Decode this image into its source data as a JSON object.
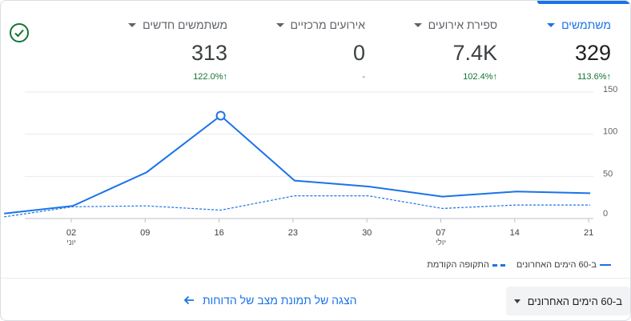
{
  "metrics": [
    {
      "label": "משתמשים",
      "value": "329",
      "change": "113.6%",
      "direction": "up",
      "active": true
    },
    {
      "label": "ספירת אירועים",
      "value": "7.4K",
      "change": "102.4%",
      "direction": "up",
      "active": false
    },
    {
      "label": "אירועים מרכזיים",
      "value": "0",
      "change": "-",
      "direction": "none",
      "active": false
    },
    {
      "label": "משתמשים חדשים",
      "value": "313",
      "change": "122.0%",
      "direction": "up",
      "active": false
    }
  ],
  "legend": {
    "current": "ב-60 הימים האחרונים",
    "previous": "התקופה הקודמת"
  },
  "footer": {
    "date_range": "ב-60 הימים האחרונים",
    "report_link": "הצגה של תמונת מצב של הדוחות"
  },
  "colors": {
    "accent": "#1a73e8",
    "positive": "#137333"
  },
  "chart_data": {
    "type": "line",
    "x": [
      "02",
      "09",
      "16",
      "23",
      "30",
      "07",
      "14",
      "21"
    ],
    "x_sublabels": [
      "יוני",
      "",
      "",
      "",
      "",
      "יולי",
      "",
      ""
    ],
    "yticks": [
      0,
      50,
      100,
      150
    ],
    "ylim": [
      0,
      150
    ],
    "grid": true,
    "legend_position": "bottom-right",
    "series": [
      {
        "name": "ב-60 הימים האחרונים",
        "style": "solid",
        "points": [
          [
            -0.93,
            6
          ],
          [
            0,
            15
          ],
          [
            1,
            55
          ],
          [
            2,
            122
          ],
          [
            3,
            45
          ],
          [
            4,
            38
          ],
          [
            5,
            26
          ],
          [
            6,
            32
          ],
          [
            7,
            30
          ]
        ],
        "highlight_index": 3
      },
      {
        "name": "התקופה הקודמת",
        "style": "dashed",
        "points": [
          [
            -0.93,
            2
          ],
          [
            0,
            14
          ],
          [
            1,
            15
          ],
          [
            2,
            10
          ],
          [
            3,
            27
          ],
          [
            4,
            27
          ],
          [
            5,
            12
          ],
          [
            6,
            16
          ],
          [
            7,
            16
          ]
        ]
      }
    ]
  }
}
